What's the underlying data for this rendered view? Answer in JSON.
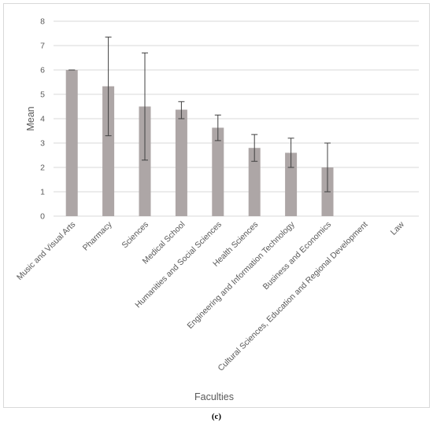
{
  "caption": "(c)",
  "chart_data": {
    "type": "bar",
    "title": "",
    "xlabel": "Faculties",
    "ylabel": "Mean",
    "ylim": [
      0,
      8
    ],
    "yticks": [
      0,
      1,
      2,
      3,
      4,
      5,
      6,
      7,
      8
    ],
    "grid": true,
    "bar_color": "#ada6a6",
    "grid_color": "#d9d9d9",
    "error_bar_color": "#404040",
    "categories": [
      "Music and Visual Arts",
      "Pharmacy",
      "Sciences",
      "Medical School",
      "Humanities and Social Sciences",
      "Health Sciences",
      "Engineering and Information Technology",
      "Business and Economics",
      "Cultural Sciences, Education and Regional Development",
      "Law"
    ],
    "values": [
      6.0,
      5.33,
      4.5,
      4.37,
      3.63,
      2.8,
      2.6,
      2.0,
      null,
      null
    ],
    "error_low": [
      6.0,
      3.3,
      2.3,
      4.0,
      3.1,
      2.25,
      2.0,
      1.0,
      null,
      null
    ],
    "error_high": [
      6.0,
      7.35,
      6.7,
      4.7,
      4.15,
      3.35,
      3.2,
      3.0,
      null,
      null
    ]
  }
}
